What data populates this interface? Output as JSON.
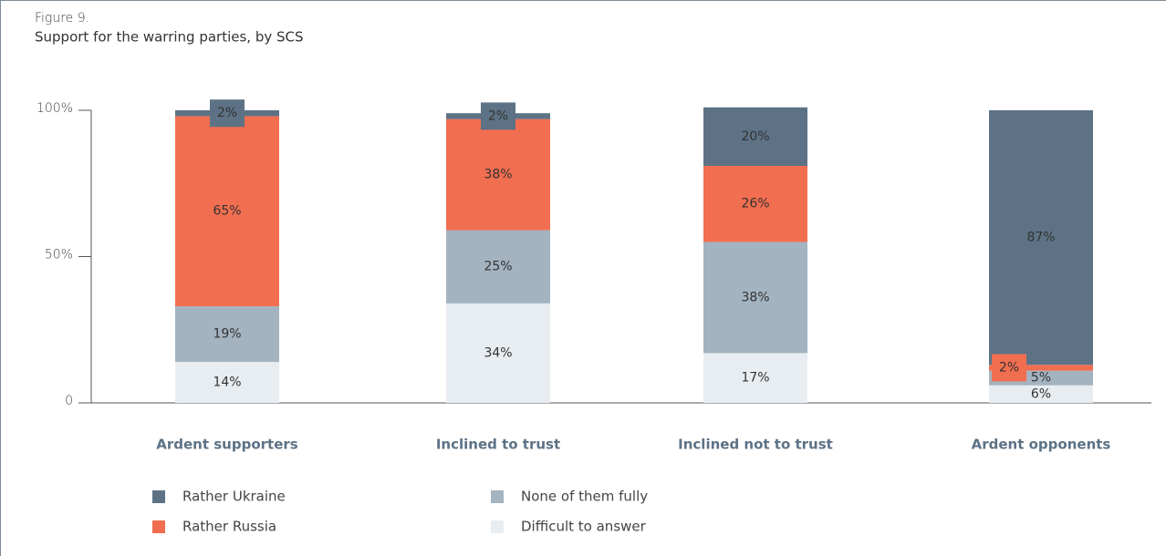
{
  "chart_data": {
    "type": "stacked_bar",
    "title": "Figure 9.",
    "subtitle": "Support for the warring parties, by SCS",
    "categories": [
      "Ardent supporters",
      "Inclined to trust",
      "Inclined not to trust",
      "Ardent opponents"
    ],
    "series": [
      {
        "name": "Rather Ukraine",
        "color": "#5d7285",
        "values": [
          2,
          2,
          20,
          87
        ],
        "value_labels": [
          "2%",
          "2%",
          "20%",
          "87%"
        ]
      },
      {
        "name": "Rather Russia",
        "color": "#f26e50",
        "values": [
          65,
          38,
          26,
          2
        ],
        "value_labels": [
          "65%",
          "38%",
          "26%",
          "2%"
        ]
      },
      {
        "name": "None of them fully",
        "color": "#a3b3c0",
        "values": [
          19,
          25,
          38,
          5
        ],
        "value_labels": [
          "19%",
          "25%",
          "38%",
          "5%"
        ]
      },
      {
        "name": "Difficult to answer",
        "color": "#e8edf1",
        "values": [
          14,
          34,
          17,
          6
        ],
        "value_labels": [
          "14%",
          "34%",
          "17%",
          "6%"
        ]
      }
    ],
    "ylim": [
      0,
      100
    ],
    "yticks": [
      0,
      {
        "value": 50,
        "label": "50%"
      },
      {
        "value": 100,
        "label": "100%"
      }
    ]
  }
}
